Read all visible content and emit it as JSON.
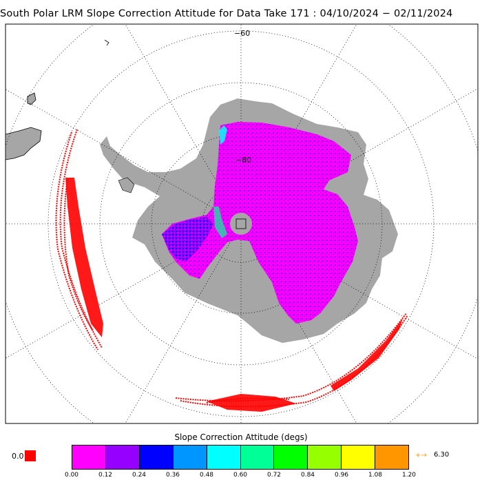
{
  "title": "South Polar LRM Slope Correction Attitude for Data Take 171 : 04/10/2024 − 02/11/2024",
  "graticule_labels": {
    "lat_outer": "−60",
    "lat_inner": "−80"
  },
  "colorbar": {
    "title": "Slope Correction Attitude (degs)",
    "colors": [
      "#ff00ff",
      "#9600ff",
      "#0000ff",
      "#0096ff",
      "#00ffff",
      "#00ff96",
      "#00ff00",
      "#96ff00",
      "#ffff00",
      "#ff9600"
    ],
    "ticks": [
      "0.00",
      "0.12",
      "0.24",
      "0.36",
      "0.48",
      "0.60",
      "0.72",
      "0.84",
      "0.96",
      "1.08",
      "1.20"
    ],
    "nodata_label": "0.0",
    "nodata_color": "#ff0000",
    "overflow_arrow": "+→",
    "overflow_value": "6.30",
    "overflow_color": "#ff9600"
  },
  "colors": {
    "land": "#a6a6a6",
    "track": "#ff0000",
    "frame": "#000000"
  }
}
